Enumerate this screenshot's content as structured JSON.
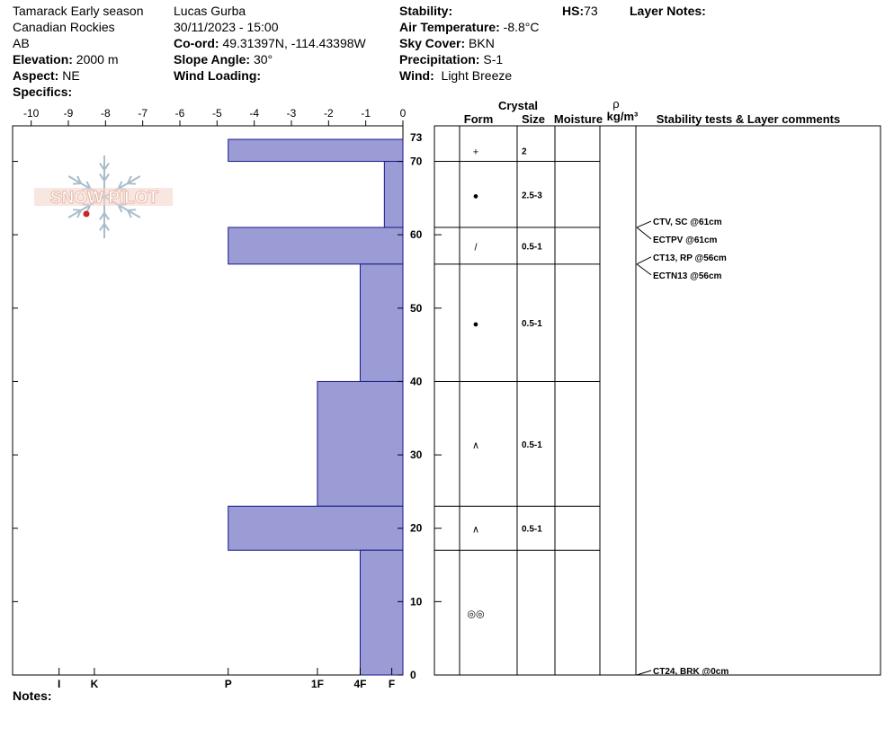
{
  "header": {
    "location": "Tamarack Early season",
    "range": "Canadian Rockies",
    "province": "AB",
    "elevation_label": "Elevation:",
    "elevation_value": "2000 m",
    "aspect_label": "Aspect:",
    "aspect_value": "NE",
    "specifics_label": "Specifics:",
    "observer": "Lucas Gurba",
    "datetime": "30/11/2023 - 15:00",
    "coord_label": "Co-ord:",
    "coord_value": "49.31397N, -114.43398W",
    "slope_label": "Slope Angle:",
    "slope_value": "30°",
    "wind_loading_label": "Wind Loading:",
    "stability_label": "Stability:",
    "air_temp_label": "Air Temperature:",
    "air_temp_value": "-8.8°C",
    "sky_label": "Sky Cover:",
    "sky_value": "BKN",
    "precip_label": "Precipitation:",
    "precip_value": "S-1",
    "wind_label": "Wind:",
    "wind_value": "Light Breeze",
    "hs_label": "HS:",
    "hs_value": "73",
    "layer_notes_label": "Layer Notes:",
    "notes_label": "Notes:"
  },
  "logo": {
    "text": "SNOW PILOT"
  },
  "columns": {
    "crystal": "Crystal",
    "form": "Form",
    "size": "Size",
    "moisture": "Moisture",
    "rho": "ρ",
    "density_unit": "kg/m³",
    "stability": "Stability tests & Layer comments"
  },
  "colors": {
    "hardness_fill": "#9b9bd5",
    "hardness_stroke": "#1a1a8c",
    "logo": "#e8b8a8",
    "flake": "#a9bccb"
  },
  "chart_data": {
    "type": "bar",
    "temperature_axis": {
      "ticks": [
        -10,
        -9,
        -8,
        -7,
        -6,
        -5,
        -4,
        -3,
        -2,
        -1,
        0
      ],
      "range": [
        -10.5,
        0
      ]
    },
    "height_axis": {
      "ticks": [
        0,
        10,
        20,
        30,
        40,
        50,
        60,
        70
      ],
      "top_label": "73",
      "range": [
        0,
        73
      ],
      "unit": "cm"
    },
    "hardness_axis": {
      "labels": [
        "I",
        "K",
        "P",
        "1F",
        "4F",
        "F"
      ],
      "positions": [
        9.25,
        8.3,
        4.7,
        2.3,
        1.15,
        0.3
      ]
    },
    "layers": [
      {
        "top": 73,
        "bottom": 70,
        "hardness_value": 4.7,
        "form": "+",
        "size": "2"
      },
      {
        "top": 70,
        "bottom": 61,
        "hardness_value": 0.5,
        "form": "●",
        "size": "2.5-3"
      },
      {
        "top": 61,
        "bottom": 56,
        "hardness_value": 4.7,
        "form": "/",
        "size": "0.5-1"
      },
      {
        "top": 56,
        "bottom": 40,
        "hardness_value": 1.15,
        "form": "●",
        "size": "0.5-1"
      },
      {
        "top": 40,
        "bottom": 23,
        "hardness_value": 2.3,
        "form": "∧",
        "size": "0.5-1"
      },
      {
        "top": 23,
        "bottom": 17,
        "hardness_value": 4.7,
        "form": "∧",
        "size": "0.5-1"
      },
      {
        "top": 17,
        "bottom": 0,
        "hardness_value": 1.15,
        "form": "◎◎",
        "size": ""
      }
    ],
    "crystal_rows": [
      {
        "top": 73,
        "bottom": 70,
        "form": "+",
        "size": "2"
      },
      {
        "top": 70,
        "bottom": 61,
        "form": "●",
        "size": "2.5-3"
      },
      {
        "top": 61,
        "bottom": 56,
        "form": "/",
        "size": "0.5-1"
      },
      {
        "top": 56,
        "bottom": 40,
        "form": "●",
        "size": "0.5-1"
      },
      {
        "top": 40,
        "bottom": 23,
        "form": "∧",
        "size": "0.5-1"
      },
      {
        "top": 23,
        "bottom": 17,
        "form": "∧",
        "size": "0.5-1"
      },
      {
        "top": 17,
        "bottom": 0,
        "form": "◎◎",
        "size": ""
      }
    ],
    "stability_tests": [
      {
        "text": "CTV, SC @61cm",
        "depth": 61
      },
      {
        "text": "ECTPV @61cm",
        "depth": 61
      },
      {
        "text": "CT13, RP @56cm",
        "depth": 56
      },
      {
        "text": "ECTN13 @56cm",
        "depth": 56
      },
      {
        "text": "CT24, BRK @0cm",
        "depth": 0
      }
    ]
  }
}
